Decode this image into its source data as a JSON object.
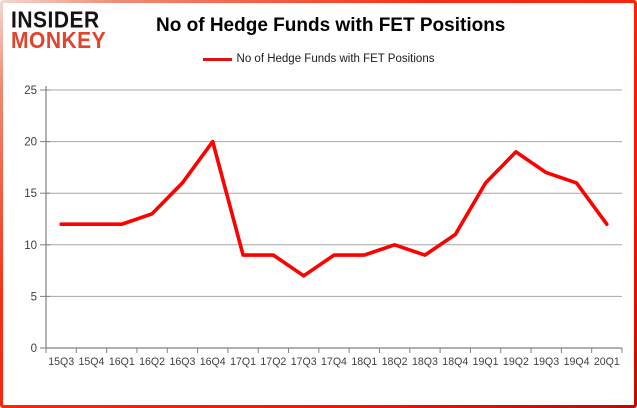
{
  "logo": {
    "line1": "INSIDER",
    "line2": "MONKEY",
    "line1_color": "#141414",
    "line2_color": "#e2432f"
  },
  "header": {
    "title": "No of Hedge Funds with FET Positions"
  },
  "legend": {
    "label": "No of Hedge Funds with FET Positions",
    "swatch_color": "#dd1111"
  },
  "chart_data": {
    "type": "line",
    "title": "No of Hedge Funds with FET Positions",
    "categories": [
      "15Q3",
      "15Q4",
      "16Q1",
      "16Q2",
      "16Q3",
      "16Q4",
      "17Q1",
      "17Q2",
      "17Q3",
      "17Q4",
      "18Q1",
      "18Q2",
      "18Q3",
      "18Q4",
      "19Q1",
      "19Q2",
      "19Q3",
      "19Q4",
      "20Q1"
    ],
    "series": [
      {
        "name": "No of Hedge Funds with FET Positions",
        "color": "#ff0000",
        "values": [
          12,
          12,
          12,
          13,
          16,
          20,
          9,
          9,
          7,
          9,
          9,
          10,
          9,
          11,
          16,
          19,
          17,
          16,
          12
        ]
      }
    ],
    "xlabel": "",
    "ylabel": "",
    "ylim": [
      0,
      25
    ],
    "yticks": [
      0,
      5,
      10,
      15,
      20,
      25
    ],
    "grid": true,
    "legend_position": "top",
    "axis_color": "#808080",
    "gridline_color": "#a6a6a6",
    "tick_label_color": "#3f3f3f"
  }
}
